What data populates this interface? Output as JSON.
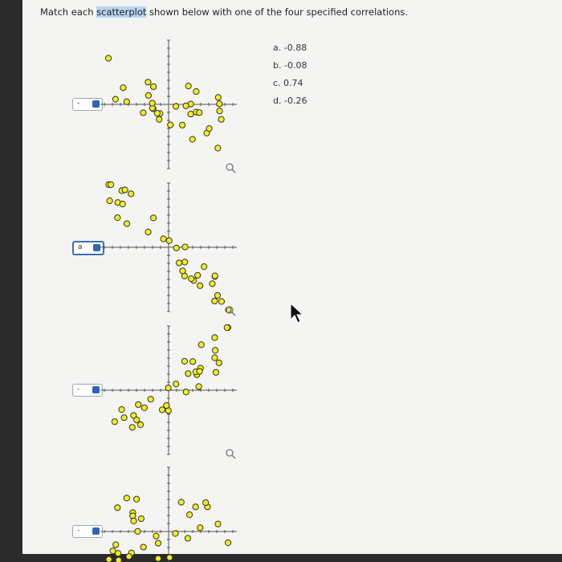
{
  "instruction": {
    "before": "Match each ",
    "highlight": "scatterplot",
    "after": " shown below with one of the four specified correlations."
  },
  "options": [
    {
      "letter": "a.",
      "value": "-0.88"
    },
    {
      "letter": "b.",
      "value": "-0.08"
    },
    {
      "letter": "c.",
      "value": "0.74"
    },
    {
      "letter": "d.",
      "value": "-0.26"
    }
  ],
  "answers": [
    "-",
    "a",
    "-",
    "-"
  ]
}
